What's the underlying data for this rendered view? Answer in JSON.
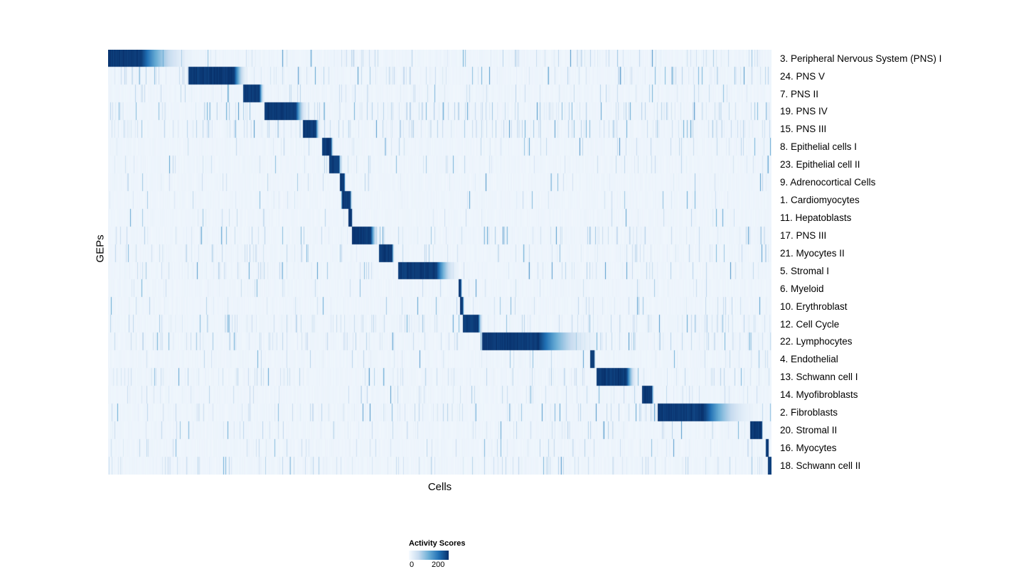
{
  "chart_data": {
    "type": "heatmap",
    "title": "",
    "xlabel": "Cells",
    "ylabel": "GEPs",
    "x_axis": "single cells ordered by max-activity GEP (no tick labels shown)",
    "colorbar": {
      "label": "Activity Scores",
      "tick_labels": [
        "0",
        "200"
      ],
      "ticks": [
        0,
        200
      ],
      "colormap": "Blues",
      "min_color": "#f7fbff",
      "max_color": "#08306b"
    },
    "noise_seed": 42,
    "rows": [
      {
        "label": "3. Peripheral Nervous System (PNS) I",
        "start": 0.0,
        "solid_end": 0.05,
        "fade_end": 0.125,
        "noise": 0.1
      },
      {
        "label": "24. PNS V",
        "start": 0.121,
        "solid_end": 0.19,
        "fade_end": 0.21,
        "noise": 0.12
      },
      {
        "label": "7. PNS II",
        "start": 0.203,
        "solid_end": 0.228,
        "fade_end": 0.236,
        "noise": 0.06
      },
      {
        "label": "19. PNS IV",
        "start": 0.236,
        "solid_end": 0.283,
        "fade_end": 0.3,
        "noise": 0.15
      },
      {
        "label": "15. PNS III",
        "start": 0.293,
        "solid_end": 0.313,
        "fade_end": 0.32,
        "noise": 0.16
      },
      {
        "label": "8. Epithelial cells I",
        "start": 0.322,
        "solid_end": 0.336,
        "fade_end": 0.34,
        "noise": 0.04
      },
      {
        "label": "23. Epithelial cell II",
        "start": 0.333,
        "solid_end": 0.348,
        "fade_end": 0.352,
        "noise": 0.05
      },
      {
        "label": "9. Adrenocortical Cells",
        "start": 0.349,
        "solid_end": 0.356,
        "fade_end": 0.358,
        "noise": 0.03
      },
      {
        "label": "1. Cardiomyocytes",
        "start": 0.353,
        "solid_end": 0.365,
        "fade_end": 0.368,
        "noise": 0.04
      },
      {
        "label": "11. Hepatoblasts",
        "start": 0.362,
        "solid_end": 0.367,
        "fade_end": 0.369,
        "noise": 0.03
      },
      {
        "label": "17. PNS III",
        "start": 0.368,
        "solid_end": 0.396,
        "fade_end": 0.408,
        "noise": 0.1
      },
      {
        "label": "21. Myocytes II",
        "start": 0.408,
        "solid_end": 0.428,
        "fade_end": 0.432,
        "noise": 0.08
      },
      {
        "label": "5. Stromal I",
        "start": 0.437,
        "solid_end": 0.495,
        "fade_end": 0.528,
        "noise": 0.1
      },
      {
        "label": "6. Myeloid",
        "start": 0.528,
        "solid_end": 0.532,
        "fade_end": 0.534,
        "noise": 0.03
      },
      {
        "label": "10. Erythroblast",
        "start": 0.531,
        "solid_end": 0.535,
        "fade_end": 0.537,
        "noise": 0.04
      },
      {
        "label": "12. Cell Cycle",
        "start": 0.535,
        "solid_end": 0.558,
        "fade_end": 0.565,
        "noise": 0.12
      },
      {
        "label": "22. Lymphocytes",
        "start": 0.564,
        "solid_end": 0.65,
        "fade_end": 0.737,
        "noise": 0.12
      },
      {
        "label": "4. Endothelial",
        "start": 0.727,
        "solid_end": 0.733,
        "fade_end": 0.735,
        "noise": 0.04
      },
      {
        "label": "13. Schwann cell I",
        "start": 0.737,
        "solid_end": 0.782,
        "fade_end": 0.798,
        "noise": 0.1
      },
      {
        "label": "14. Myofibroblasts",
        "start": 0.805,
        "solid_end": 0.82,
        "fade_end": 0.824,
        "noise": 0.06
      },
      {
        "label": "2. Fibroblasts",
        "start": 0.829,
        "solid_end": 0.9,
        "fade_end": 0.973,
        "noise": 0.1
      },
      {
        "label": "20. Stromal II",
        "start": 0.968,
        "solid_end": 0.986,
        "fade_end": 0.988,
        "noise": 0.08
      },
      {
        "label": "16. Myocytes",
        "start": 0.992,
        "solid_end": 0.996,
        "fade_end": 0.997,
        "noise": 0.06
      },
      {
        "label": "18. Schwann cell II",
        "start": 0.995,
        "solid_end": 1.0,
        "fade_end": 1.0,
        "noise": 0.1
      }
    ]
  }
}
